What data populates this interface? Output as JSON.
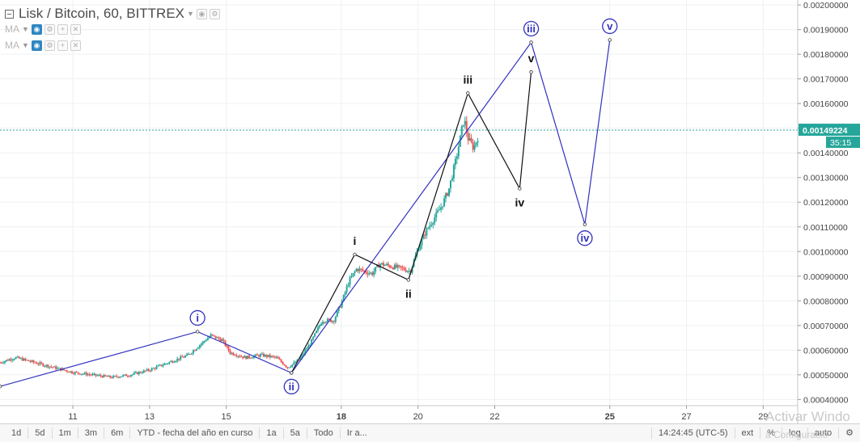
{
  "header": {
    "title": "Lisk / Bitcoin, 60, BITTREX",
    "indicators": [
      {
        "label": "MA"
      },
      {
        "label": "MA"
      }
    ]
  },
  "bottom_bar": {
    "ranges": [
      "1d",
      "5d",
      "1m",
      "3m",
      "6m",
      "YTD - fecha del año en curso",
      "1a",
      "5a",
      "Todo",
      "Ir a..."
    ],
    "clock": "14:24:45 (UTC-5)",
    "options": [
      "ext",
      "%",
      "log",
      "auto"
    ]
  },
  "watermark": {
    "line1": "Activar Windo",
    "line2": "a Configuració"
  },
  "colors": {
    "up": "#26a69a",
    "down": "#ef5350",
    "wave_blue": "#3030c0",
    "wave_black": "#111111",
    "price_line": "#26a69a"
  },
  "chart_data": {
    "type": "candlestick",
    "symbol": "Lisk / Bitcoin",
    "interval": "60",
    "exchange": "BITTREX",
    "current_price": "0.00149224",
    "countdown": "35:15",
    "y_ticks": [
      "0.00200000",
      "0.00190000",
      "0.00180000",
      "0.00170000",
      "0.00160000",
      "0.00150000",
      "0.00140000",
      "0.00130000",
      "0.00120000",
      "0.00110000",
      "0.00100000",
      "0.00090000",
      "0.00080000",
      "0.00070000",
      "0.00060000",
      "0.00050000",
      "0.00040000"
    ],
    "ylim": [
      0.000375,
      0.00202
    ],
    "x_ticks": [
      {
        "label": "11",
        "day": 11
      },
      {
        "label": "13",
        "day": 13
      },
      {
        "label": "15",
        "day": 15
      },
      {
        "label": "18",
        "day": 18
      },
      {
        "label": "20",
        "day": 20
      },
      {
        "label": "22",
        "day": 22
      },
      {
        "label": "25",
        "day": 25
      },
      {
        "label": "27",
        "day": 27
      },
      {
        "label": "29",
        "day": 29
      }
    ],
    "xlim": [
      9.1,
      29.9
    ],
    "price_path": [
      [
        9.1,
        0.00055
      ],
      [
        9.5,
        0.00057
      ],
      [
        10.0,
        0.00055
      ],
      [
        10.5,
        0.00053
      ],
      [
        11.0,
        0.00051
      ],
      [
        11.5,
        0.0005
      ],
      [
        12.0,
        0.00049
      ],
      [
        12.5,
        0.0005
      ],
      [
        13.0,
        0.00052
      ],
      [
        13.5,
        0.00055
      ],
      [
        14.0,
        0.00058
      ],
      [
        14.3,
        0.00062
      ],
      [
        14.6,
        0.00066
      ],
      [
        14.9,
        0.00064
      ],
      [
        15.1,
        0.00059
      ],
      [
        15.5,
        0.00057
      ],
      [
        15.9,
        0.00058
      ],
      [
        16.3,
        0.00057
      ],
      [
        16.6,
        0.00053
      ],
      [
        16.9,
        0.00056
      ],
      [
        17.2,
        0.00063
      ],
      [
        17.5,
        0.00072
      ],
      [
        17.8,
        0.00072
      ],
      [
        18.0,
        0.00079
      ],
      [
        18.2,
        0.00088
      ],
      [
        18.4,
        0.00093
      ],
      [
        18.6,
        0.00092
      ],
      [
        18.8,
        0.00091
      ],
      [
        19.0,
        0.00095
      ],
      [
        19.3,
        0.00094
      ],
      [
        19.6,
        0.00093
      ],
      [
        19.8,
        0.00092
      ],
      [
        20.0,
        0.00101
      ],
      [
        20.2,
        0.00108
      ],
      [
        20.4,
        0.00113
      ],
      [
        20.6,
        0.00118
      ],
      [
        20.8,
        0.00125
      ],
      [
        21.0,
        0.00138
      ],
      [
        21.2,
        0.00154
      ],
      [
        21.3,
        0.00146
      ],
      [
        21.45,
        0.00142
      ],
      [
        21.6,
        0.00148
      ]
    ],
    "wave_counts": [
      {
        "degree": "primary",
        "style": "circled",
        "color": "#3030c0",
        "points": [
          {
            "day": 9.1,
            "price": 0.000453,
            "label": ""
          },
          {
            "day": 14.25,
            "price": 0.000675,
            "label": "i"
          },
          {
            "day": 16.7,
            "price": 0.000508,
            "label": "ii"
          },
          {
            "day": 22.95,
            "price": 0.001848,
            "label": "iii"
          },
          {
            "day": 24.35,
            "price": 0.00111,
            "label": "iv"
          },
          {
            "day": 25.0,
            "price": 0.001858,
            "label": "v"
          }
        ]
      },
      {
        "degree": "minor",
        "style": "plain",
        "color": "#111111",
        "points": [
          {
            "day": 16.7,
            "price": 0.000508,
            "label": ""
          },
          {
            "day": 18.35,
            "price": 0.000988,
            "label": "i"
          },
          {
            "day": 19.75,
            "price": 0.000885,
            "label": "ii"
          },
          {
            "day": 21.3,
            "price": 0.001642,
            "label": "iii"
          },
          {
            "day": 22.65,
            "price": 0.001255,
            "label": "iv"
          },
          {
            "day": 22.95,
            "price": 0.001728,
            "label": "v"
          }
        ]
      }
    ],
    "grid": true
  }
}
